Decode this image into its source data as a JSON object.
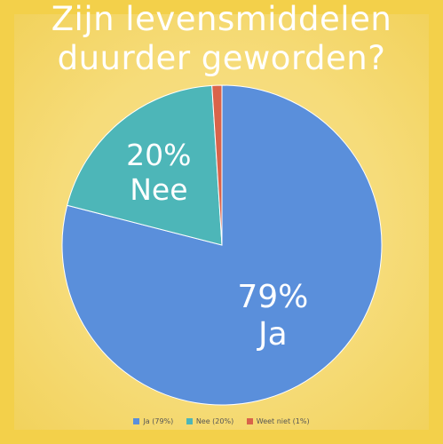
{
  "chart_data": {
    "type": "pie",
    "title_lines": [
      "Zijn levensmiddelen",
      "duurder geworden?"
    ],
    "slices": [
      {
        "label": "Ja",
        "value": 79,
        "color": "#5a8fdb",
        "pct_label": "79%",
        "legend": "Ja (79%)"
      },
      {
        "label": "Nee",
        "value": 20,
        "color": "#4db6b8",
        "pct_label": "20%",
        "legend": "Nee (20%)"
      },
      {
        "label": "Weet niet",
        "value": 1,
        "color": "#d9634a",
        "pct_label": "",
        "legend": "Weet niet (1%)"
      }
    ],
    "legend_position": "bottom"
  }
}
